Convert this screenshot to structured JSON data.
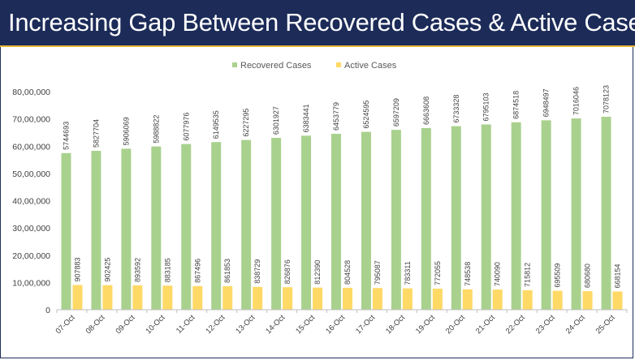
{
  "title": "Increasing Gap Between Recovered Cases & Active Cases",
  "colors": {
    "recovered": "#a9d18e",
    "active": "#ffd966",
    "banner": "#1c2b58",
    "accent": "#e8b83a"
  },
  "chart_data": {
    "type": "bar",
    "title": "Increasing Gap Between Recovered Cases & Active Cases",
    "xlabel": "",
    "ylabel": "",
    "ylim": [
      0,
      8000000
    ],
    "yticks": [
      0,
      1000000,
      2000000,
      3000000,
      4000000,
      5000000,
      6000000,
      7000000,
      8000000
    ],
    "ytick_labels": [
      "0",
      "10,00,000",
      "20,00,000",
      "30,00,000",
      "40,00,000",
      "50,00,000",
      "60,00,000",
      "70,00,000",
      "80,00,000"
    ],
    "legend": "top-center",
    "grid": false,
    "categories": [
      "07-Oct",
      "08-Oct",
      "09-Oct",
      "10-Oct",
      "11-Oct",
      "12-Oct",
      "13-Oct",
      "14-Oct",
      "15-Oct",
      "16-Oct",
      "17-Oct",
      "18-Oct",
      "19-Oct",
      "20-Oct",
      "21-Oct",
      "22-Oct",
      "23-Oct",
      "24-Oct",
      "25-Oct"
    ],
    "series": [
      {
        "name": "Recovered Cases",
        "color": "#a9d18e",
        "values": [
          5744693,
          5827704,
          5906069,
          5988822,
          6077976,
          6149535,
          6227295,
          6301927,
          6383441,
          6453779,
          6524595,
          6597209,
          6663608,
          6733328,
          6795103,
          6874518,
          6948497,
          7016046,
          7078123
        ]
      },
      {
        "name": "Active Cases",
        "color": "#ffd966",
        "values": [
          907883,
          902425,
          893592,
          883185,
          867496,
          861853,
          838729,
          826876,
          812390,
          804528,
          795087,
          783311,
          772055,
          748538,
          740090,
          715812,
          695509,
          680680,
          668154
        ]
      }
    ]
  }
}
